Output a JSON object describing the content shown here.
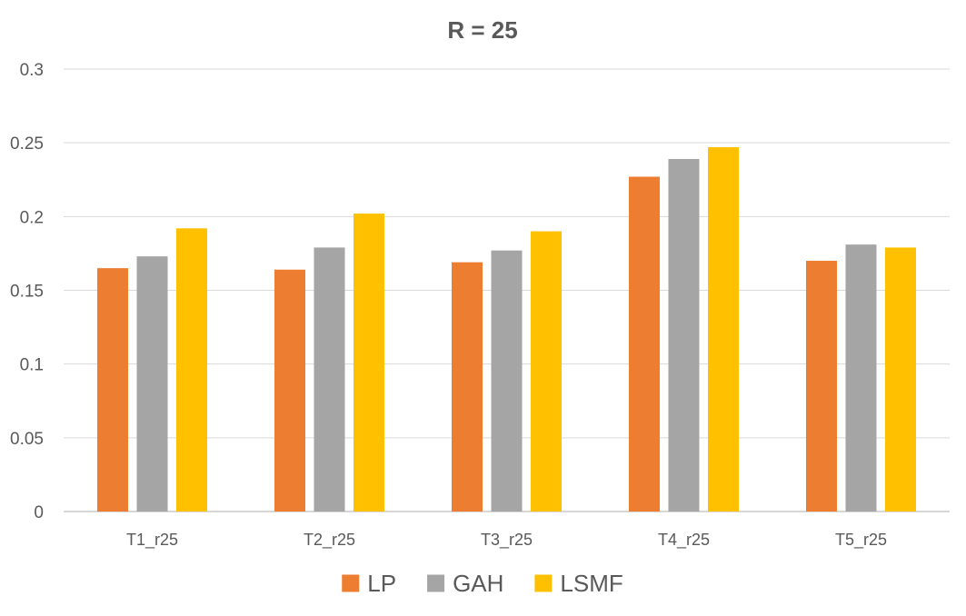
{
  "chart_data": {
    "type": "bar",
    "title": "R = 25",
    "xlabel": "",
    "ylabel": "",
    "categories": [
      "T1_r25",
      "T2_r25",
      "T3_r25",
      "T4_r25",
      "T5_r25"
    ],
    "series": [
      {
        "name": "LP",
        "color": "#ED7D31",
        "values": [
          0.165,
          0.164,
          0.169,
          0.227,
          0.17
        ]
      },
      {
        "name": "GAH",
        "color": "#A5A5A5",
        "values": [
          0.173,
          0.179,
          0.177,
          0.239,
          0.181
        ]
      },
      {
        "name": "LSMF",
        "color": "#FFC000",
        "values": [
          0.192,
          0.202,
          0.19,
          0.247,
          0.179
        ]
      }
    ],
    "ylim": [
      0,
      0.3
    ],
    "yticks": [
      0,
      0.05,
      0.1,
      0.15,
      0.2,
      0.25,
      0.3
    ],
    "ytick_labels": [
      "0",
      "0.05",
      "0.1",
      "0.15",
      "0.2",
      "0.25",
      "0.3"
    ],
    "grid": true,
    "legend_position": "bottom"
  }
}
